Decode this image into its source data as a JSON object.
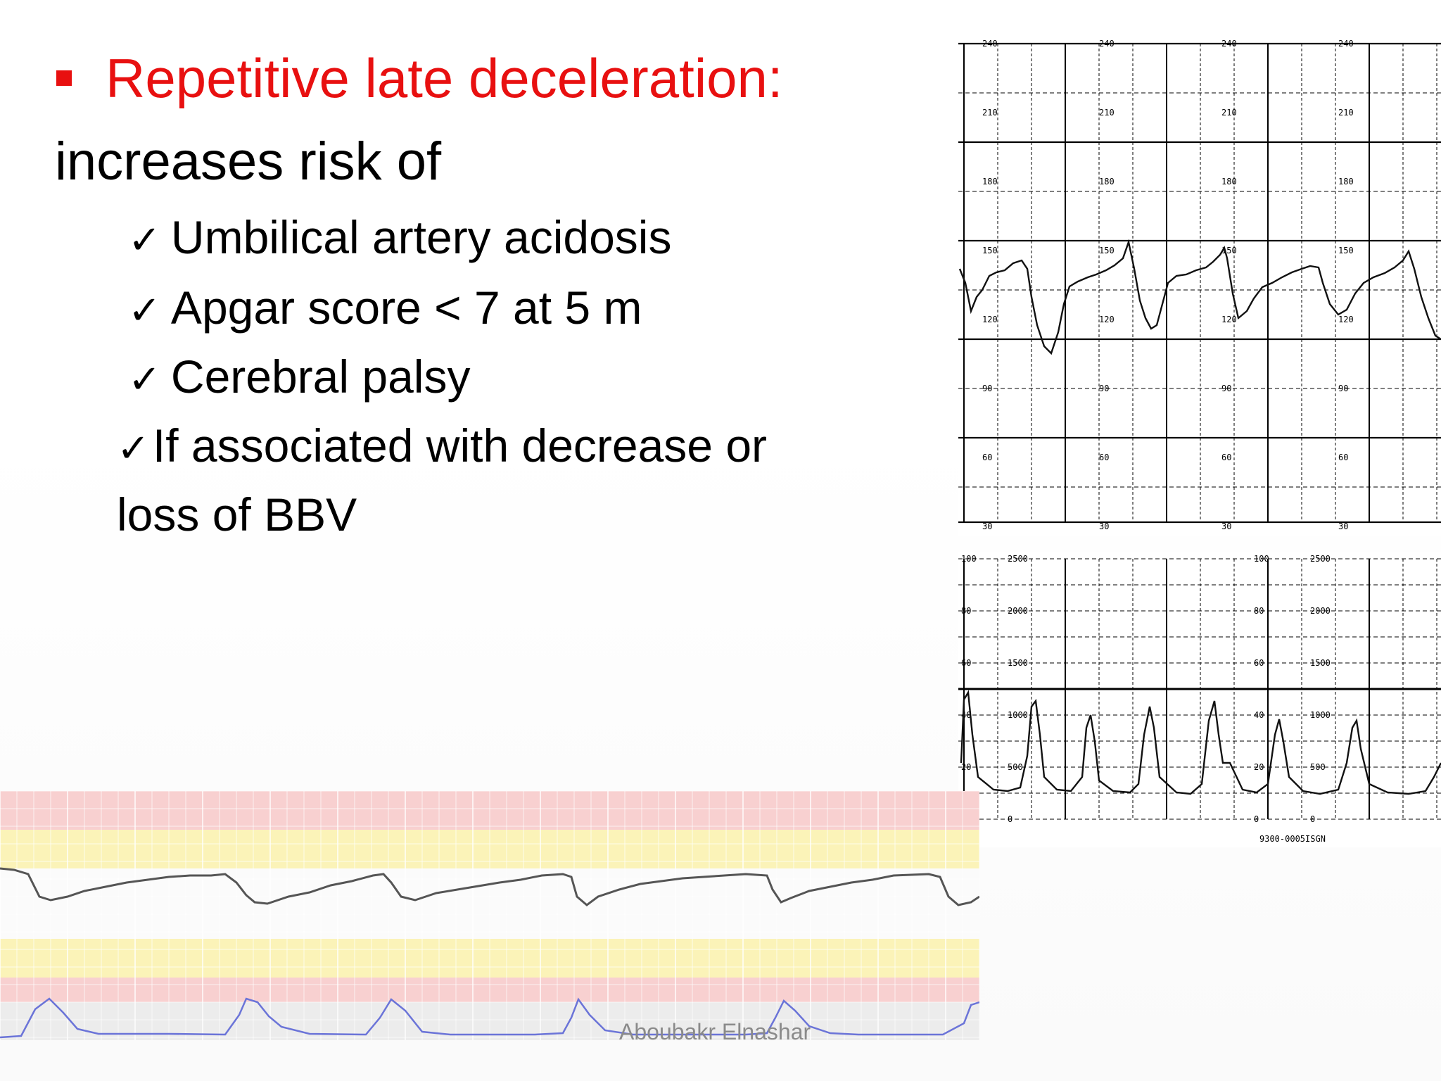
{
  "slide": {
    "title": "Repetitive late deceleration:",
    "intro": "increases risk of",
    "items": [
      "Umbilical artery acidosis",
      "Apgar score < 7 at 5 m",
      "Cerebral palsy",
      "If associated with decrease or"
    ],
    "item_continuation": "loss of BBV",
    "check_symbol": "✓",
    "footer": "Aboubakr Elnashar"
  },
  "ctg_top": {
    "left_labels": [
      "240",
      "210",
      "180",
      "150",
      "120",
      "90",
      "60",
      "30"
    ],
    "mid_labels": [
      "240",
      "210",
      "180",
      "150",
      "120",
      "90",
      "60",
      "30"
    ]
  },
  "ctg_bottom": {
    "left_labels": [
      "100",
      "80",
      "60",
      "40",
      "20",
      "0"
    ],
    "mid_labels": [
      "2500",
      "2000",
      "1500",
      "1000",
      "500",
      "0"
    ],
    "code": "9300-0005ISGN"
  },
  "colors": {
    "title": "#e81010",
    "text": "#000000",
    "footer": "#8a8a8a",
    "band_red": "#f8d0d0",
    "band_yellow": "#fbf3b8",
    "contraction_trace": "#6b74d8"
  }
}
